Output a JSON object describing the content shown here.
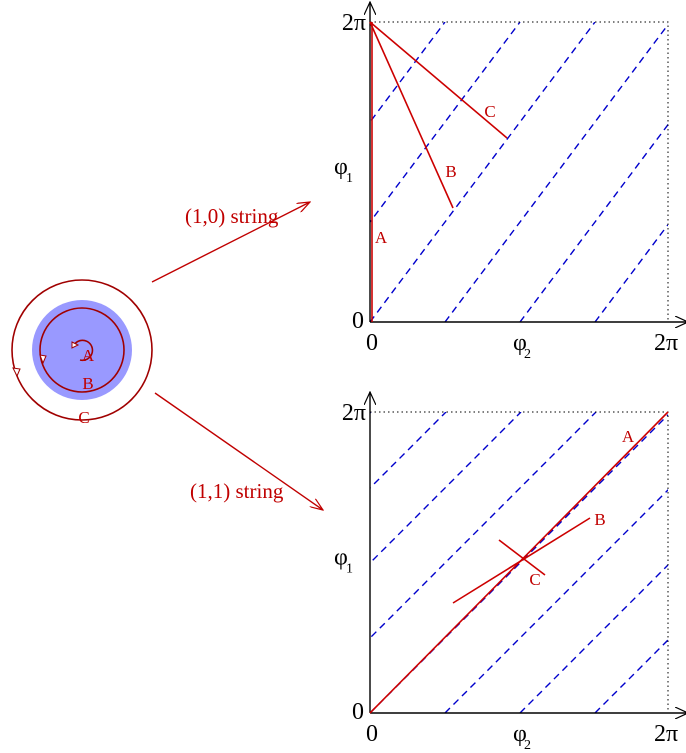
{
  "circle": {
    "labels": [
      "A",
      "B",
      "C"
    ]
  },
  "arrows": [
    {
      "label": "(1,0) string"
    },
    {
      "label": "(1,1) string"
    }
  ],
  "panels": [
    {
      "y_top": "2π",
      "y_label": "φ",
      "y_sub": "1",
      "origin": "0",
      "x_zero": "0",
      "x_label": "φ",
      "x_sub": "2",
      "x_end": "2π",
      "curves": [
        "A",
        "B",
        "C"
      ]
    },
    {
      "y_top": "2π",
      "y_label": "φ",
      "y_sub": "1",
      "origin": "0",
      "x_zero": "0",
      "x_label": "φ",
      "x_sub": "2",
      "x_end": "2π",
      "curves": [
        "A",
        "B",
        "C"
      ]
    }
  ]
}
